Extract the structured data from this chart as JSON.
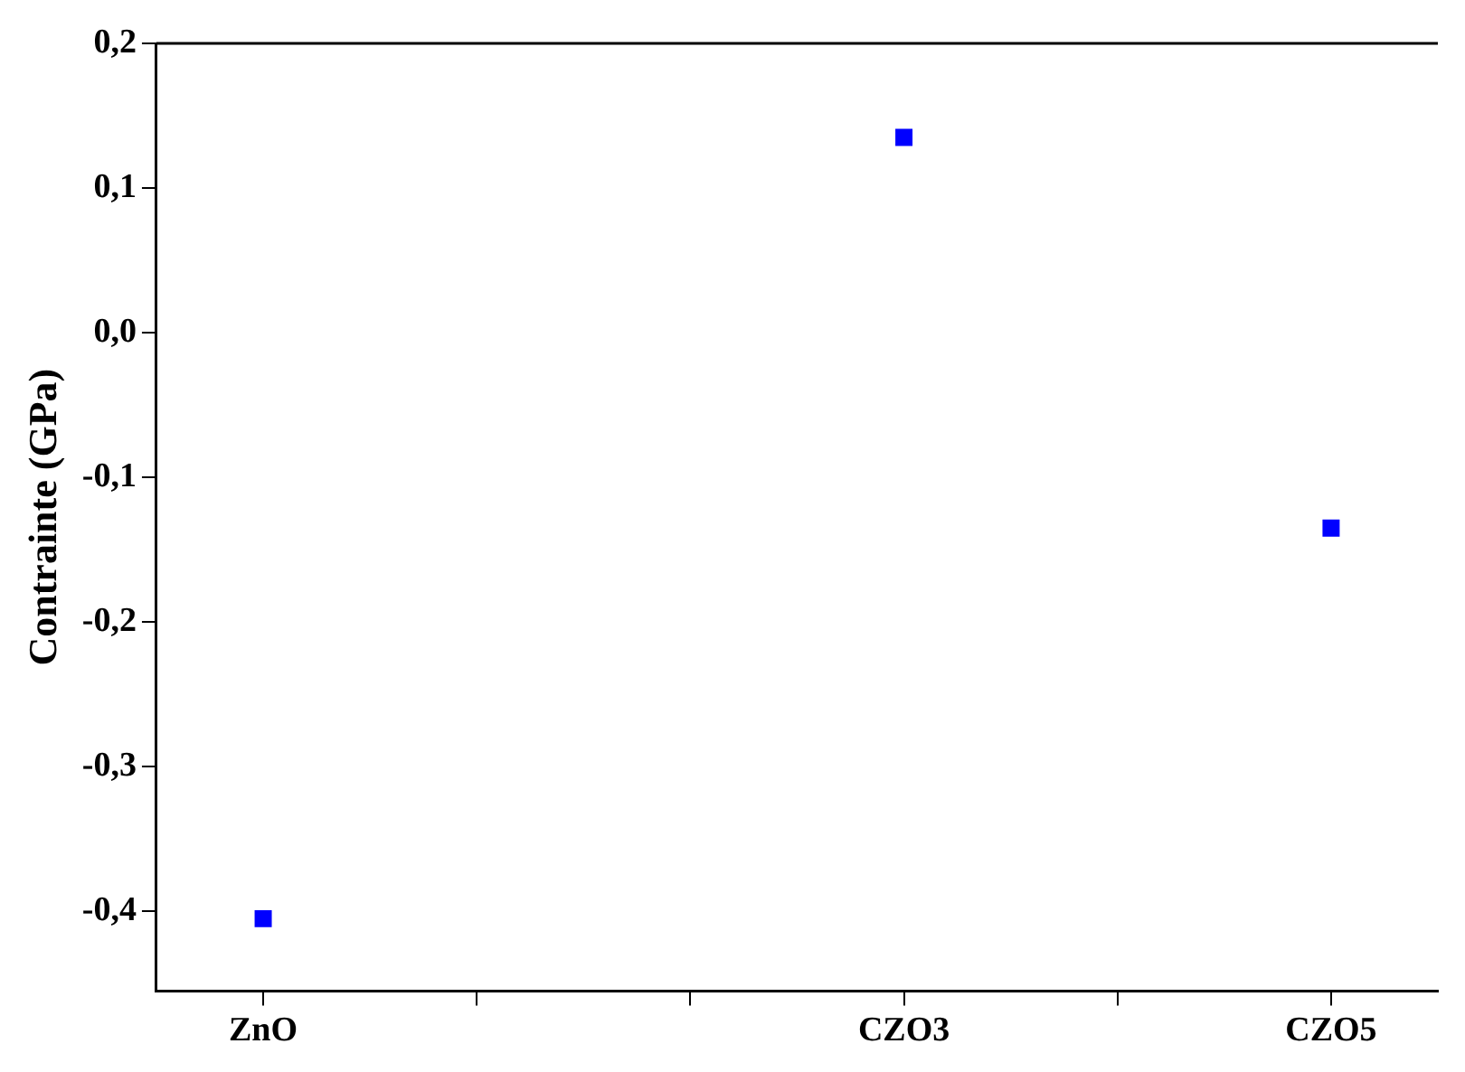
{
  "chart_data": {
    "type": "scatter",
    "ylabel": "Contrainte (GPa)",
    "categories": [
      "ZnO",
      null,
      null,
      "CZO3",
      null,
      "CZO5"
    ],
    "series": [
      {
        "color": "#0000ff",
        "values": [
          -0.405,
          null,
          null,
          0.135,
          null,
          -0.135
        ]
      }
    ],
    "marker": "square",
    "grid": false,
    "legend": false,
    "ylim": [
      -0.455,
      0.2
    ],
    "yticks": [
      {
        "value": -0.4,
        "label": "-0,4"
      },
      {
        "value": -0.3,
        "label": "-0,3"
      },
      {
        "value": -0.2,
        "label": "-0,2"
      },
      {
        "value": -0.1,
        "label": "-0,1"
      },
      {
        "value": 0,
        "label": "0,0"
      },
      {
        "value": 0.1,
        "label": "0,1"
      },
      {
        "value": 0.2,
        "label": "0,2"
      }
    ]
  }
}
